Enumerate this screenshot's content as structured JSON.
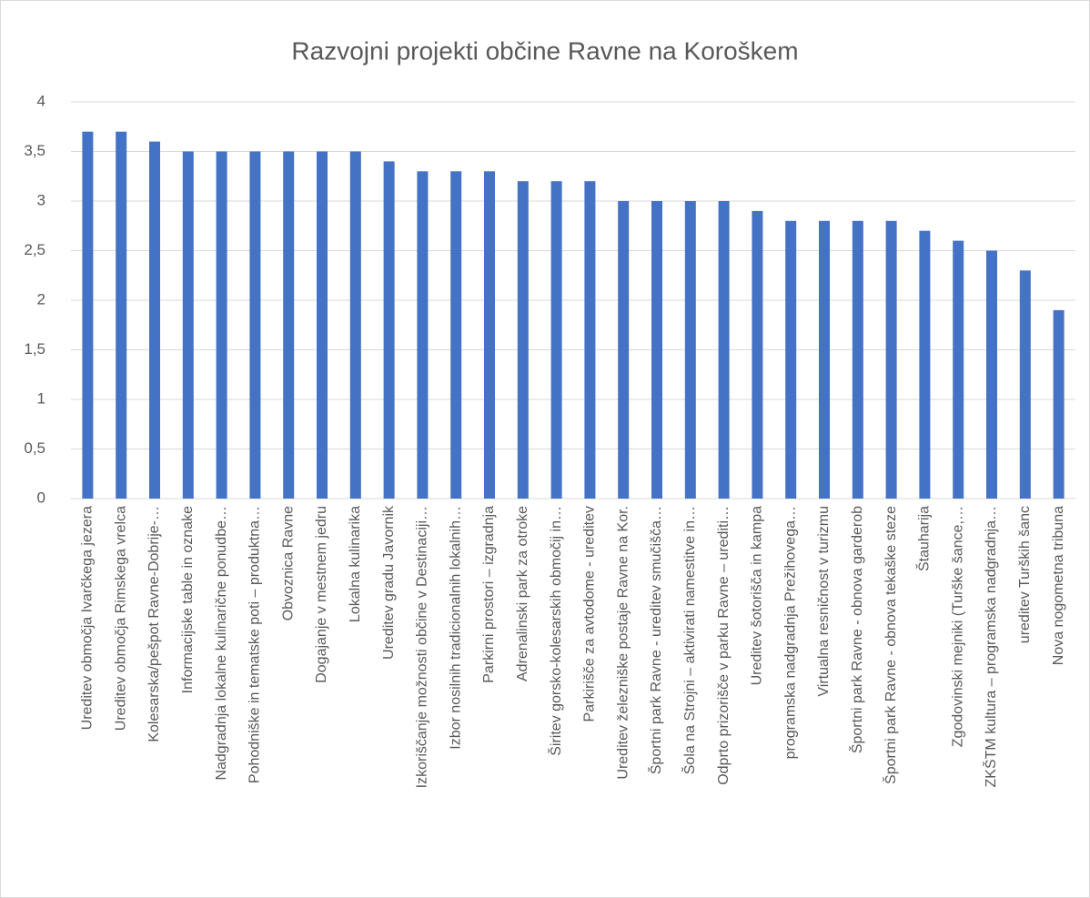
{
  "chart_data": {
    "type": "bar",
    "title": "Razvojni projekti občine Ravne na Koroškem",
    "categories": [
      "Ureditev območja Ivarčkega jezera",
      "Ureditev območja Rimskega vrelca",
      "Kolesarska/pešpot Ravne-Dobrije-…",
      "Informacijske table in oznake",
      "Nadgradnja lokalne kulinarične ponudbe…",
      "Pohodniške in tematske poti – produktna…",
      "Obvoznica Ravne",
      "Dogajanje v mestnem jedru",
      "Lokalna kulinarika",
      "Ureditev gradu Javornik",
      "Izkoriščanje možnosti občine v Destinaciji…",
      "Izbor nosilnih tradicionalnih lokalnih…",
      "Parkirni prostori – izgradnja",
      "Adrenalinski park za otroke",
      "Širitev gorsko-kolesarskih območij in…",
      "Parkirišče za avtodome - ureditev",
      "Ureditev železniške postaje Ravne na Kor.",
      "Športni park Ravne - ureditev smučišča…",
      "Šola na Strojni – aktivirati namestitve in…",
      "Odprto prizorišče v parku Ravne – urediti…",
      "Ureditev šotorišča in kampa",
      "programska nadgradnja Prežihovega…",
      "Virtualna resničnost v turizmu",
      "Športni park Ravne - obnova garderob",
      "Športni park Ravne - obnova tekaške steze",
      "Štauharija",
      "Zgodovinski mejniki (Turške šance,…",
      "ZKŠTM kultura – programska nadgradnja…",
      "ureditev Turških šanc",
      "Nova nogometna tribuna"
    ],
    "values": [
      3.7,
      3.7,
      3.6,
      3.5,
      3.5,
      3.5,
      3.5,
      3.5,
      3.5,
      3.4,
      3.3,
      3.3,
      3.3,
      3.2,
      3.2,
      3.2,
      3.0,
      3.0,
      3.0,
      3.0,
      2.9,
      2.8,
      2.8,
      2.8,
      2.8,
      2.7,
      2.6,
      2.5,
      2.3,
      1.9
    ],
    "color": "#4472c4",
    "ylim": [
      0,
      4
    ],
    "yticks": [
      0,
      {
        "value": 0.5,
        "label": "0,5"
      },
      1,
      {
        "value": 1.5,
        "label": "1,5"
      },
      2,
      {
        "value": 2.5,
        "label": "2,5"
      },
      3,
      {
        "value": 3.5,
        "label": "3,5"
      },
      4
    ],
    "grid": true
  }
}
